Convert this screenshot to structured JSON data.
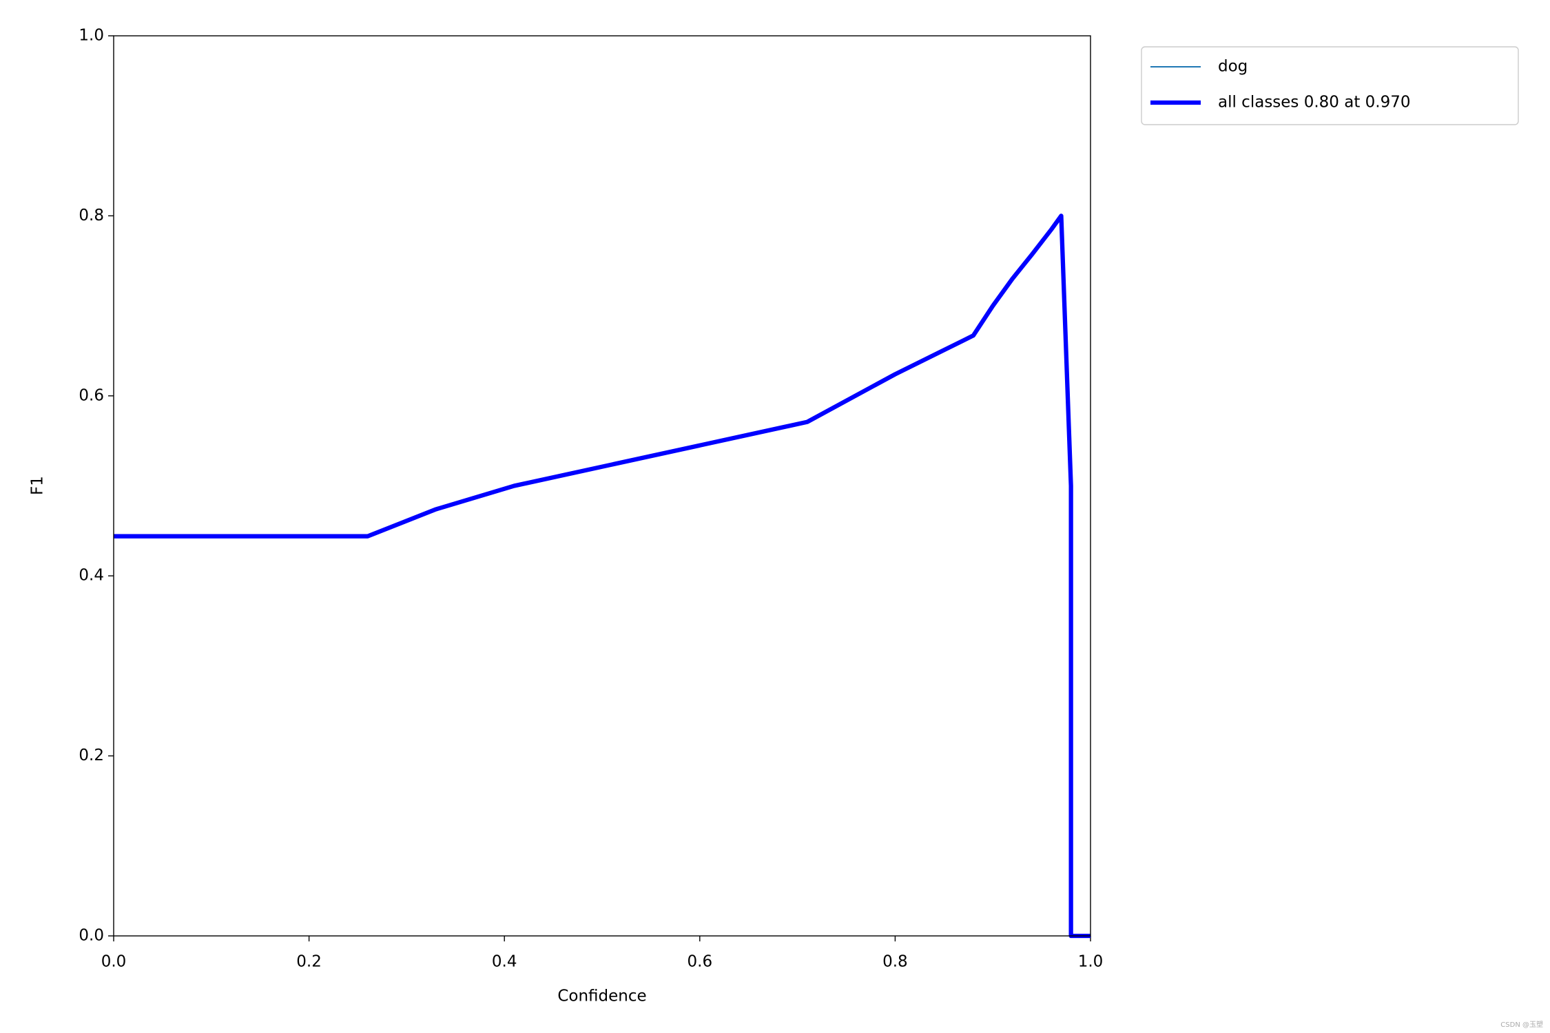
{
  "chart_data": {
    "type": "line",
    "x_label": "Confidence",
    "y_label": "F1",
    "x": [
      0.0,
      0.26,
      0.33,
      0.41,
      0.71,
      0.8,
      0.88,
      0.9,
      0.92,
      0.94,
      0.96,
      0.97,
      0.98,
      0.98,
      1.0
    ],
    "series": [
      {
        "name": "dog",
        "color": "#1f77b4",
        "width": 1,
        "values": [
          0.444,
          0.444,
          0.474,
          0.5,
          0.571,
          0.624,
          0.667,
          0.7,
          0.73,
          0.757,
          0.785,
          0.8,
          0.5,
          0.0,
          0.0
        ]
      },
      {
        "name": "all classes 0.80 at 0.970",
        "color": "#0000ff",
        "width": 3,
        "values": [
          0.444,
          0.444,
          0.474,
          0.5,
          0.571,
          0.624,
          0.667,
          0.7,
          0.73,
          0.757,
          0.785,
          0.8,
          0.5,
          0.0,
          0.0
        ]
      }
    ],
    "xlim": [
      0,
      1
    ],
    "ylim": [
      0,
      1
    ],
    "xticks": [
      {
        "value": 0,
        "label": "0.0"
      },
      0.2,
      0.4,
      0.6,
      0.8,
      {
        "value": 1,
        "label": "1.0"
      }
    ],
    "yticks": [
      {
        "value": 0,
        "label": "0.0"
      },
      0.2,
      0.4,
      0.6,
      0.8,
      {
        "value": 1,
        "label": "1.0"
      }
    ],
    "legend": "outside-upper-right",
    "watermark": "CSDN @玉塑"
  }
}
